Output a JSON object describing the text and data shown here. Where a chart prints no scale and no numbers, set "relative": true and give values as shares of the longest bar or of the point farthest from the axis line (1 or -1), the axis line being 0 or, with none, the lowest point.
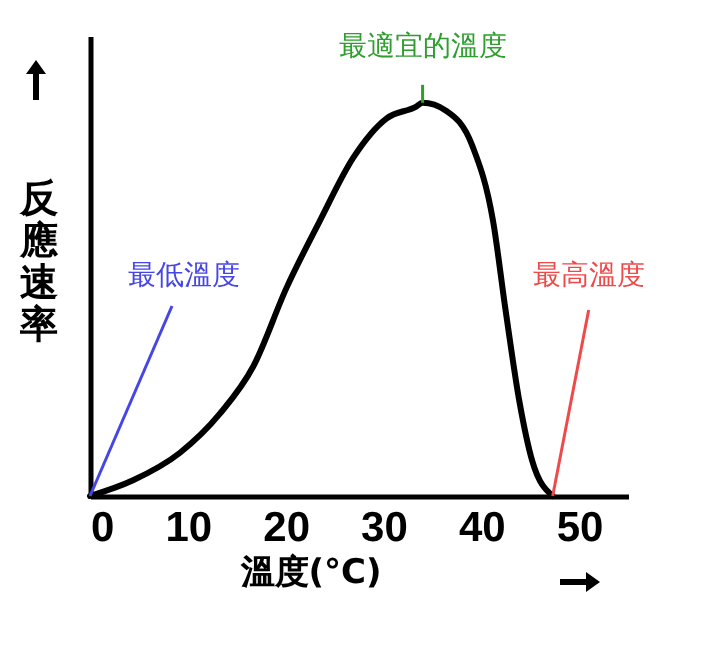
{
  "chart_data": {
    "type": "line",
    "xlabel": "溫度(°C)",
    "ylabel": "反應速率",
    "relative": true,
    "xlim": [
      0,
      55
    ],
    "xticks": [
      0,
      10,
      20,
      30,
      40,
      50
    ],
    "marker": "none",
    "line_style": "solid",
    "series": [
      {
        "color": "#000000",
        "x": [
          0,
          4.4,
          9.2,
          13.3,
          16.7,
          20.1,
          23.5,
          26.9,
          30.3,
          33.3,
          34,
          36.4,
          39.1,
          41.2,
          42.5,
          43.9,
          45.2,
          47.3
        ],
        "values": [
          0,
          0.04,
          0.11,
          0.21,
          0.33,
          0.53,
          0.7,
          0.86,
          0.96,
          0.99,
          1,
          0.98,
          0.89,
          0.7,
          0.47,
          0.24,
          0.09,
          0
        ]
      }
    ],
    "annotations": [
      {
        "text": "最低溫度",
        "x": 0,
        "y": 0
      },
      {
        "text": "最適宜的溫度",
        "x": 34,
        "y": 1
      },
      {
        "text": "最高溫度",
        "x": 47.3,
        "y": 0
      }
    ]
  }
}
